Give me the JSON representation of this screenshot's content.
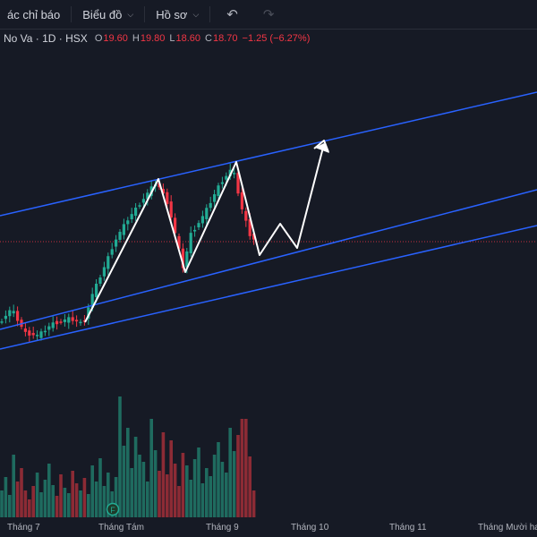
{
  "toolbar": {
    "indicators_label": "ác chỉ báo",
    "chart_type_label": "Biểu đồ",
    "profile_label": "Hồ sơ"
  },
  "legend": {
    "symbol": "No Va · 1D · HSX",
    "open_label": "O",
    "open": "19.60",
    "high_label": "H",
    "high": "19.80",
    "low_label": "L",
    "low": "18.60",
    "close_label": "C",
    "close": "18.70",
    "change": "−1.25 (−6.27%)"
  },
  "time_axis": {
    "labels": [
      "Tháng 7",
      "Tháng Tám",
      "Tháng 9",
      "Tháng 10",
      "Tháng 11",
      "Tháng Mười hai"
    ]
  },
  "event_marker": "F",
  "colors": {
    "background": "#161a25",
    "up": "#22ab94",
    "down": "#f23645",
    "channel": "#2962ff",
    "annotation": "#ffffff",
    "last_price_line": "#f23645"
  },
  "icons": {
    "chevron": "chevron-down-icon",
    "undo": "undo-icon",
    "redo": "redo-icon"
  }
}
